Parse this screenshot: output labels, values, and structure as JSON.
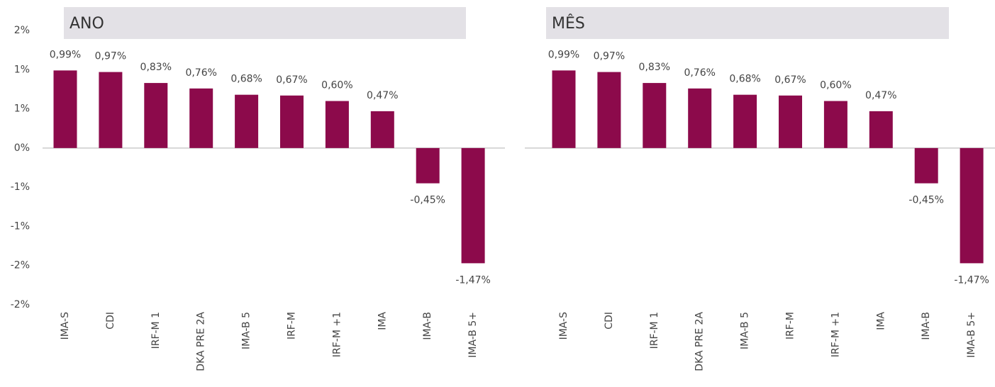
{
  "chart_data": [
    {
      "type": "bar",
      "title": "ANO",
      "categories": [
        "IMA-S",
        "CDI",
        "IRF-M 1",
        "DKA PRE 2A",
        "IMA-B 5",
        "IRF-M",
        "IRF-M +1",
        "IMA",
        "IMA-B",
        "IMA-B 5+"
      ],
      "values": [
        0.99,
        0.97,
        0.83,
        0.76,
        0.68,
        0.67,
        0.6,
        0.47,
        -0.45,
        -1.47
      ],
      "value_labels": [
        "0,99%",
        "0,97%",
        "0,83%",
        "0,76%",
        "0,68%",
        "0,67%",
        "0,60%",
        "0,47%",
        "-0,45%",
        "-1,47%"
      ],
      "color": "#8c0a4b",
      "ylim": [
        -2,
        1.5
      ],
      "yticks": [
        {
          "value": 1.5,
          "label": "2%"
        },
        {
          "value": 1,
          "label": "1%"
        },
        {
          "value": 0.5,
          "label": "1%"
        },
        {
          "value": 0,
          "label": "0%"
        },
        {
          "value": -0.5,
          "label": "-1%"
        },
        {
          "value": -1,
          "label": "-1%"
        },
        {
          "value": -1.5,
          "label": "-2%"
        },
        {
          "value": -2,
          "label": "-2%"
        }
      ]
    },
    {
      "type": "bar",
      "title": "MÊS",
      "categories": [
        "IMA-S",
        "CDI",
        "IRF-M 1",
        "DKA PRE 2A",
        "IMA-B 5",
        "IRF-M",
        "IRF-M +1",
        "IMA",
        "IMA-B",
        "IMA-B 5+"
      ],
      "values": [
        0.99,
        0.97,
        0.83,
        0.76,
        0.68,
        0.67,
        0.6,
        0.47,
        -0.45,
        -1.47
      ],
      "value_labels": [
        "0,99%",
        "0,97%",
        "0,83%",
        "0,76%",
        "0,68%",
        "0,67%",
        "0,60%",
        "0,47%",
        "-0,45%",
        "-1,47%"
      ],
      "color": "#8c0a4b",
      "ylim": [
        -2,
        1.5
      ]
    }
  ]
}
